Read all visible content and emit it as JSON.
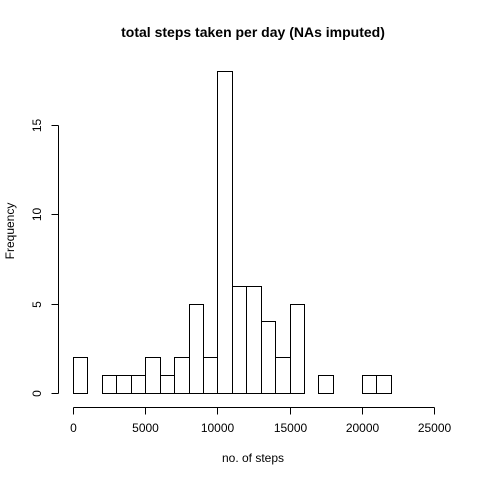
{
  "chart_data": {
    "type": "bar",
    "title": "total steps taken per day (NAs imputed)",
    "xlabel": "no. of steps",
    "ylabel": "Frequency",
    "bin_width": 1000,
    "bin_edges": [
      0,
      1000,
      2000,
      3000,
      4000,
      5000,
      6000,
      7000,
      8000,
      9000,
      10000,
      11000,
      12000,
      13000,
      14000,
      15000,
      16000,
      17000,
      18000,
      19000,
      20000,
      21000,
      22000
    ],
    "values": [
      2,
      0,
      1,
      1,
      1,
      2,
      1,
      2,
      5,
      2,
      18,
      6,
      6,
      4,
      2,
      5,
      0,
      1,
      0,
      0,
      1,
      1
    ],
    "xlim": [
      0,
      25000
    ],
    "ylim": [
      0,
      18
    ],
    "x_ticks": [
      0,
      5000,
      10000,
      15000,
      20000,
      25000
    ],
    "x_tick_labels": [
      "0",
      "5000",
      "10000",
      "15000",
      "20000",
      "25000"
    ],
    "y_ticks": [
      0,
      5,
      10,
      15
    ],
    "y_tick_labels": [
      "0",
      "5",
      "10",
      "15"
    ],
    "grid": false,
    "legend": "none"
  }
}
